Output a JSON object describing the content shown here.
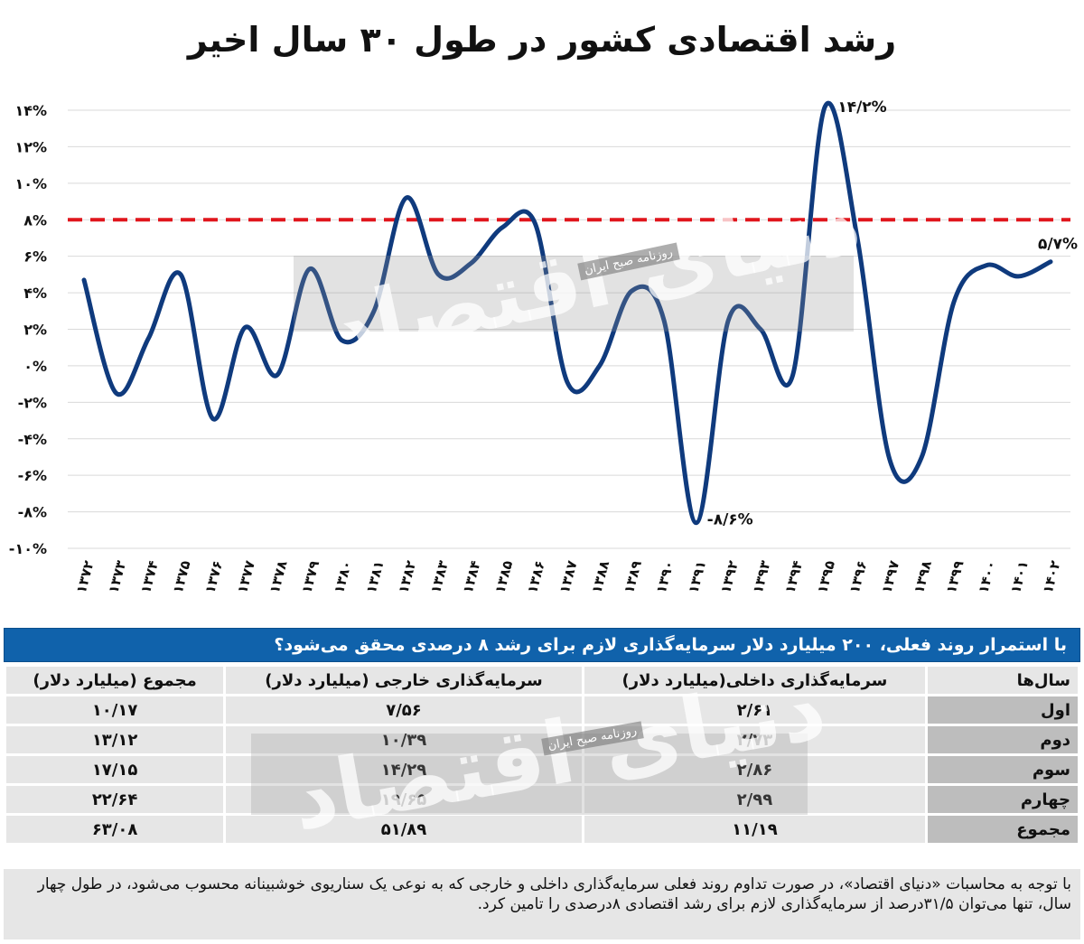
{
  "chart_data": {
    "type": "line",
    "title": "رشد اقتصادی کشور در طول ۳۰ سال اخیر",
    "categories": [
      "۱۳۷۲",
      "۱۳۷۳",
      "۱۳۷۴",
      "۱۳۷۵",
      "۱۳۷۶",
      "۱۳۷۷",
      "۱۳۷۸",
      "۱۳۷۹",
      "۱۳۸۰",
      "۱۳۸۱",
      "۱۳۸۲",
      "۱۳۸۳",
      "۱۳۸۴",
      "۱۳۸۵",
      "۱۳۸۶",
      "۱۳۸۷",
      "۱۳۸۸",
      "۱۳۸۹",
      "۱۳۹۰",
      "۱۳۹۱",
      "۱۳۹۲",
      "۱۳۹۳",
      "۱۳۹۴",
      "۱۳۹۵",
      "۱۳۹۶",
      "۱۳۹۷",
      "۱۳۹۸",
      "۱۳۹۹",
      "۱۴۰۰",
      "۱۴۰۱",
      "۱۴۰۲"
    ],
    "values": [
      4.7,
      -1.5,
      1.5,
      5.0,
      -2.9,
      2.1,
      -0.5,
      5.3,
      1.4,
      3.0,
      9.2,
      5.0,
      5.6,
      7.6,
      7.8,
      -0.9,
      0.0,
      4.1,
      2.5,
      -8.6,
      2.5,
      2.0,
      -0.5,
      14.2,
      7.0,
      -5.1,
      -5.0,
      3.5,
      5.5,
      4.9,
      5.7
    ],
    "ylim": [
      -10,
      14
    ],
    "yticks": [
      "۱۴%",
      "۱۲%",
      "۱۰%",
      "۸%",
      "۶%",
      "۴%",
      "۲%",
      "۰%",
      "-۲%",
      "-۴%",
      "-۶%",
      "-۸%",
      "-۱۰%"
    ],
    "target_line": 8,
    "annotations": [
      {
        "index": 23,
        "text": "۱۴/۲%"
      },
      {
        "index": 19,
        "text": "-۸/۶%"
      },
      {
        "index": 30,
        "text": "۵/۷%"
      }
    ],
    "grid": true,
    "line_color": "#0f3a7d",
    "target_color": "#e0161d"
  },
  "watermark": {
    "brand": "دنیای اقتصاد",
    "tagline": "روزنامه صبح ایران"
  },
  "table": {
    "title": "با استمرار روند فعلی، ۲۰۰ میلیارد دلار سرمایه‌گذاری لازم برای رشد ۸ درصدی محقق می‌شود؟",
    "headers": [
      "سال‌ها",
      "سرمایه‌گذاری داخلی(میلیارد دلار)",
      "سرمایه‌گذاری خارجی (میلیارد دلار)",
      "مجموع (میلیارد دلار)"
    ],
    "rows": [
      {
        "year": "اول",
        "domestic": "۲/۶۱",
        "foreign": "۷/۵۶",
        "total": "۱۰/۱۷"
      },
      {
        "year": "دوم",
        "domestic": "۲/۷۳",
        "foreign": "۱۰/۳۹",
        "total": "۱۳/۱۲"
      },
      {
        "year": "سوم",
        "domestic": "۲/۸۶",
        "foreign": "۱۴/۲۹",
        "total": "۱۷/۱۵"
      },
      {
        "year": "چهارم",
        "domestic": "۲/۹۹",
        "foreign": "۱۹/۶۵",
        "total": "۲۲/۶۴"
      },
      {
        "year": "مجموع",
        "domestic": "۱۱/۱۹",
        "foreign": "۵۱/۸۹",
        "total": "۶۳/۰۸"
      }
    ]
  },
  "footnote": "با توجه به محاسبات «دنیای اقتصاد»، در صورت تداوم روند فعلی سرمایه‌گذاری داخلی و خارجی که به نوعی یک سناریوی خوشبینانه محسوب می‌شود، در طول چهار سال، تنها می‌توان ۳۱/۵درصد از سرمایه‌گذاری لازم برای رشد اقتصادی ۸درصدی را تامین کرد."
}
